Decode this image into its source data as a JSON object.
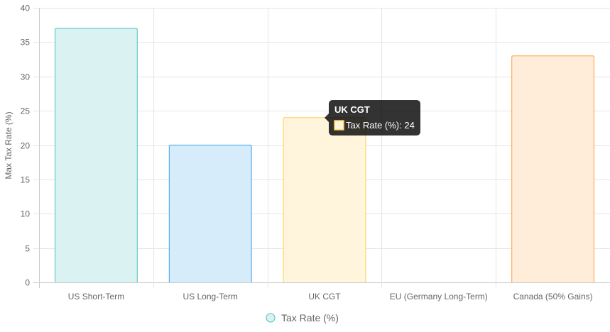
{
  "chart_data": {
    "type": "bar",
    "categories": [
      "US Short-Term",
      "US Long-Term",
      "UK CGT",
      "EU (Germany Long-Term)",
      "Canada (50% Gains)"
    ],
    "series": [
      {
        "name": "Tax Rate (%)",
        "values": [
          37,
          20,
          24,
          0,
          33
        ]
      }
    ],
    "title": "",
    "xlabel": "",
    "ylabel": "Max Tax Rate (%)",
    "ylim": [
      0,
      40
    ],
    "yticks": [
      "0",
      "5",
      "10",
      "15",
      "20",
      "25",
      "30",
      "35",
      "40"
    ],
    "grid": true,
    "legend": {
      "position": "bottom",
      "label": "Tax Rate (%)"
    },
    "colors": {
      "fill": [
        "#dbf2f2",
        "#d7ecfb",
        "#fff5dd",
        "#ebe0ff",
        "#ffecd9"
      ],
      "border": [
        "#4bc0c0",
        "#36a2eb",
        "#ffce56",
        "#9966ff",
        "#ff9f40"
      ]
    },
    "tooltip": {
      "title": "UK CGT",
      "body": "Tax Rate (%): 24",
      "index": 2
    }
  }
}
